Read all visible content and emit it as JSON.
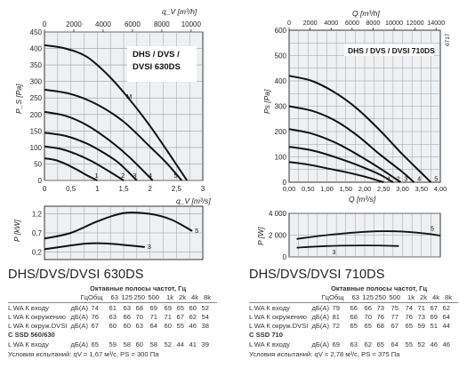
{
  "chart_data": [
    {
      "type": "line",
      "title": "DHS / DVS / DVSI 630DS",
      "xlabel": "q_V [m³/s]",
      "x2label": "q_V [m³/h]",
      "ylabel": "P_S [Pa]",
      "xlim": [
        0,
        3
      ],
      "ylim": [
        0,
        450
      ],
      "x_ticks": [
        "0",
        "0,5",
        "1",
        "1,5",
        "2",
        "2,5",
        "3"
      ],
      "x2_ticks": [
        "0",
        "2000",
        "4000",
        "6000",
        "8000",
        "10000"
      ],
      "y_ticks": [
        "0",
        "50",
        "100",
        "150",
        "200",
        "250",
        "300",
        "350",
        "400",
        "450"
      ],
      "grid": true,
      "series": [
        {
          "name": "1",
          "x": [
            0,
            0.2,
            0.4,
            0.6,
            0.8,
            1.0
          ],
          "y": [
            67,
            62,
            50,
            34,
            16,
            0
          ]
        },
        {
          "name": "2",
          "x": [
            0,
            0.3,
            0.6,
            0.9,
            1.2,
            1.5
          ],
          "y": [
            103,
            96,
            80,
            58,
            30,
            0
          ]
        },
        {
          "name": "3",
          "x": [
            0,
            0.4,
            0.8,
            1.1,
            1.4,
            1.75
          ],
          "y": [
            145,
            135,
            112,
            86,
            54,
            0
          ]
        },
        {
          "name": "4",
          "x": [
            0,
            0.4,
            0.8,
            1.2,
            1.6,
            2.05
          ],
          "y": [
            208,
            196,
            168,
            125,
            72,
            0
          ]
        },
        {
          "name": "5",
          "x": [
            0,
            0.5,
            1.0,
            1.5,
            2.0,
            2.3,
            2.6
          ],
          "y": [
            275,
            262,
            230,
            178,
            102,
            55,
            0
          ]
        },
        {
          "name": "M",
          "x": [
            0,
            0.4,
            0.8,
            1.2,
            1.6,
            2.0,
            2.4,
            2.7
          ],
          "y": [
            410,
            400,
            375,
            320,
            248,
            165,
            72,
            0
          ]
        }
      ],
      "lower_panel": {
        "ylabel": "P [kW]",
        "y_ticks": [
          "0,2",
          "0,7",
          "1,2"
        ],
        "ylim": [
          0,
          1.4
        ],
        "series": [
          {
            "name": "3",
            "x": [
              0,
              0.4,
              0.8,
              1.2,
              1.6,
              1.9
            ],
            "y": [
              0.27,
              0.35,
              0.42,
              0.42,
              0.37,
              0.33
            ]
          },
          {
            "name": "5",
            "x": [
              0,
              0.5,
              1.0,
              1.5,
              2.0,
              2.4,
              2.8
            ],
            "y": [
              0.55,
              0.7,
              1.0,
              1.22,
              1.2,
              1.05,
              0.75
            ]
          }
        ]
      }
    },
    {
      "type": "line",
      "title": "DHS / DVS / DVSI 710DS",
      "xlabel": "Q [m³/s]",
      "x2label": "Q [m³/h]",
      "ylabel": "Ps [Pa]",
      "xlim": [
        0,
        4
      ],
      "ylim": [
        0,
        600
      ],
      "x_ticks": [
        "0,00",
        "0,50",
        "1,00",
        "1,50",
        "2,00",
        "2,50",
        "3,00",
        "3,50",
        "4,00"
      ],
      "x2_ticks": [
        "0",
        "2000",
        "4000",
        "6000",
        "8000",
        "10000",
        "12000",
        "14000"
      ],
      "y_ticks": [
        "0",
        "100",
        "200",
        "300",
        "400",
        "500",
        "600"
      ],
      "grid": true,
      "series": [
        {
          "name": "1",
          "x": [
            0,
            0.5,
            1.0,
            1.5,
            2.0,
            2.5
          ],
          "y": [
            80,
            70,
            55,
            40,
            22,
            0
          ]
        },
        {
          "name": "2",
          "x": [
            0,
            0.6,
            1.2,
            1.8,
            2.4,
            2.75
          ],
          "y": [
            140,
            126,
            100,
            68,
            30,
            0
          ]
        },
        {
          "name": "3",
          "x": [
            0,
            0.6,
            1.2,
            1.8,
            2.4,
            2.95
          ],
          "y": [
            210,
            192,
            158,
            110,
            55,
            0
          ]
        },
        {
          "name": "4",
          "x": [
            0,
            0.6,
            1.2,
            1.8,
            2.4,
            3.0,
            3.3
          ],
          "y": [
            300,
            282,
            245,
            185,
            110,
            40,
            0
          ]
        },
        {
          "name": "5",
          "x": [
            0,
            0.6,
            1.2,
            1.8,
            2.4,
            3.0,
            3.6,
            3.75
          ],
          "y": [
            420,
            400,
            355,
            290,
            205,
            110,
            22,
            0
          ]
        }
      ],
      "lower_panel": {
        "ylabel": "P [W]",
        "y_ticks": [
          "0",
          "2 000",
          "4 000"
        ],
        "ylim": [
          0,
          4000
        ],
        "series": [
          {
            "name": "3",
            "x": [
              0.2,
              1.0,
              2.0,
              2.9
            ],
            "y": [
              850,
              1000,
              1050,
              1000
            ]
          },
          {
            "name": "5",
            "x": [
              0.2,
              1.0,
              2.0,
              2.8,
              3.6,
              4.0
            ],
            "y": [
              1650,
              2000,
              2300,
              2350,
              2150,
              1950
            ]
          }
        ]
      }
    }
  ],
  "fig_code": "6717",
  "tables": [
    {
      "title": "DHS/DVS/DVSI 630DS",
      "header": "Октавные полосы частот, Гц",
      "columns": [
        "Гц",
        "Общ",
        "63",
        "125",
        "250",
        "500",
        "1k",
        "2k",
        "4k",
        "8k"
      ],
      "rows": [
        {
          "label": "L WA К входу",
          "unit": "дБ(А)",
          "values": [
            "74",
            "61",
            "63",
            "68",
            "69",
            "69",
            "65",
            "60",
            "52"
          ]
        },
        {
          "label": "L WA К окружению",
          "unit": "дБ(А)",
          "values": [
            "76",
            "63",
            "66",
            "70",
            "71",
            "71",
            "67",
            "62",
            "54"
          ]
        },
        {
          "label": "L WA К окруж.DVSI",
          "unit": "дБ(А)",
          "values": [
            "67",
            "60",
            "60",
            "63",
            "64",
            "60",
            "55",
            "46",
            "38"
          ]
        }
      ],
      "section": "C  SSD 560/630",
      "section_rows": [
        {
          "label": "L WA К входу",
          "unit": "дБ(А)",
          "values": [
            "65",
            "59",
            "58",
            "60",
            "58",
            "52",
            "44",
            "41",
            "39"
          ]
        }
      ],
      "conditions": "Условия испытаний: qV = 1,67 м³/с, PS = 300 Па"
    },
    {
      "title": "DHS/DVS/DVSI 710DS",
      "header": "Октавные полосы частот, Гц",
      "columns": [
        "Гц",
        "Общ",
        "63",
        "125",
        "250",
        "500",
        "1k",
        "2k",
        "4k",
        "8k"
      ],
      "rows": [
        {
          "label": "L WA К входу",
          "unit": "дБ(А)",
          "values": [
            "79",
            "66",
            "66",
            "73",
            "75",
            "74",
            "71",
            "67",
            "62"
          ]
        },
        {
          "label": "L WA К окружению",
          "unit": "дБ(А)",
          "values": [
            "81",
            "68",
            "70",
            "76",
            "77",
            "76",
            "73",
            "69",
            "64"
          ]
        },
        {
          "label": "L WA К окруж.DVSI",
          "unit": "дБ(А)",
          "values": [
            "72",
            "65",
            "65",
            "68",
            "67",
            "65",
            "59",
            "51",
            "44"
          ]
        }
      ],
      "section": "C  SSD 710",
      "section_rows": [
        {
          "label": "L WA К входу",
          "unit": "дБ(А)",
          "values": [
            "69",
            "63",
            "62",
            "65",
            "64",
            "55",
            "52",
            "46",
            "46"
          ]
        }
      ],
      "conditions": "Условия испытаний: qV = 2,78 м³/с, PS = 375 Па"
    }
  ]
}
